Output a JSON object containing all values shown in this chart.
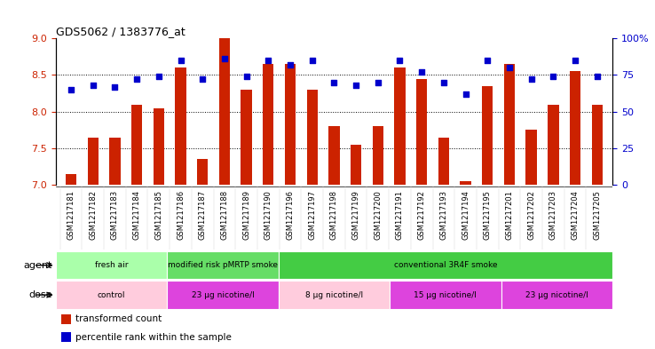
{
  "title": "GDS5062 / 1383776_at",
  "samples": [
    "GSM1217181",
    "GSM1217182",
    "GSM1217183",
    "GSM1217184",
    "GSM1217185",
    "GSM1217186",
    "GSM1217187",
    "GSM1217188",
    "GSM1217189",
    "GSM1217190",
    "GSM1217196",
    "GSM1217197",
    "GSM1217198",
    "GSM1217199",
    "GSM1217200",
    "GSM1217191",
    "GSM1217192",
    "GSM1217193",
    "GSM1217194",
    "GSM1217195",
    "GSM1217201",
    "GSM1217202",
    "GSM1217203",
    "GSM1217204",
    "GSM1217205"
  ],
  "bar_values": [
    7.15,
    7.65,
    7.65,
    8.1,
    8.05,
    8.6,
    7.35,
    9.0,
    8.3,
    8.65,
    8.65,
    8.3,
    7.8,
    7.55,
    7.8,
    8.6,
    8.45,
    7.65,
    7.05,
    8.35,
    8.65,
    7.75,
    8.1,
    8.55,
    8.1
  ],
  "dot_values": [
    65,
    68,
    67,
    72,
    74,
    85,
    72,
    86,
    74,
    85,
    82,
    85,
    70,
    68,
    70,
    85,
    77,
    70,
    62,
    85,
    80,
    72,
    74,
    85,
    74
  ],
  "ylim_left": [
    7.0,
    9.0
  ],
  "ylim_right": [
    0,
    100
  ],
  "yticks_left": [
    7.0,
    7.5,
    8.0,
    8.5,
    9.0
  ],
  "yticks_right": [
    0,
    25,
    50,
    75,
    100
  ],
  "bar_color": "#CC2200",
  "dot_color": "#0000CC",
  "bar_bottom": 7.0,
  "agent_groups": [
    {
      "label": "fresh air",
      "start": 0,
      "end": 5,
      "color": "#AAFFAA"
    },
    {
      "label": "modified risk pMRTP smoke",
      "start": 5,
      "end": 10,
      "color": "#66DD66"
    },
    {
      "label": "conventional 3R4F smoke",
      "start": 10,
      "end": 25,
      "color": "#44CC44"
    }
  ],
  "dose_groups": [
    {
      "label": "control",
      "start": 0,
      "end": 5,
      "color": "#FFCCDD"
    },
    {
      "label": "23 µg nicotine/l",
      "start": 5,
      "end": 10,
      "color": "#DD44DD"
    },
    {
      "label": "8 µg nicotine/l",
      "start": 10,
      "end": 15,
      "color": "#FFCCDD"
    },
    {
      "label": "15 µg nicotine/l",
      "start": 15,
      "end": 20,
      "color": "#DD44DD"
    },
    {
      "label": "23 µg nicotine/l",
      "start": 20,
      "end": 25,
      "color": "#DD44DD"
    }
  ],
  "legend_bar_label": "transformed count",
  "legend_dot_label": "percentile rank within the sample",
  "grid_lines": [
    7.5,
    8.0,
    8.5
  ],
  "agent_label": "agent",
  "dose_label": "dose",
  "xlabel_fontsize": 6,
  "bar_width": 0.5
}
